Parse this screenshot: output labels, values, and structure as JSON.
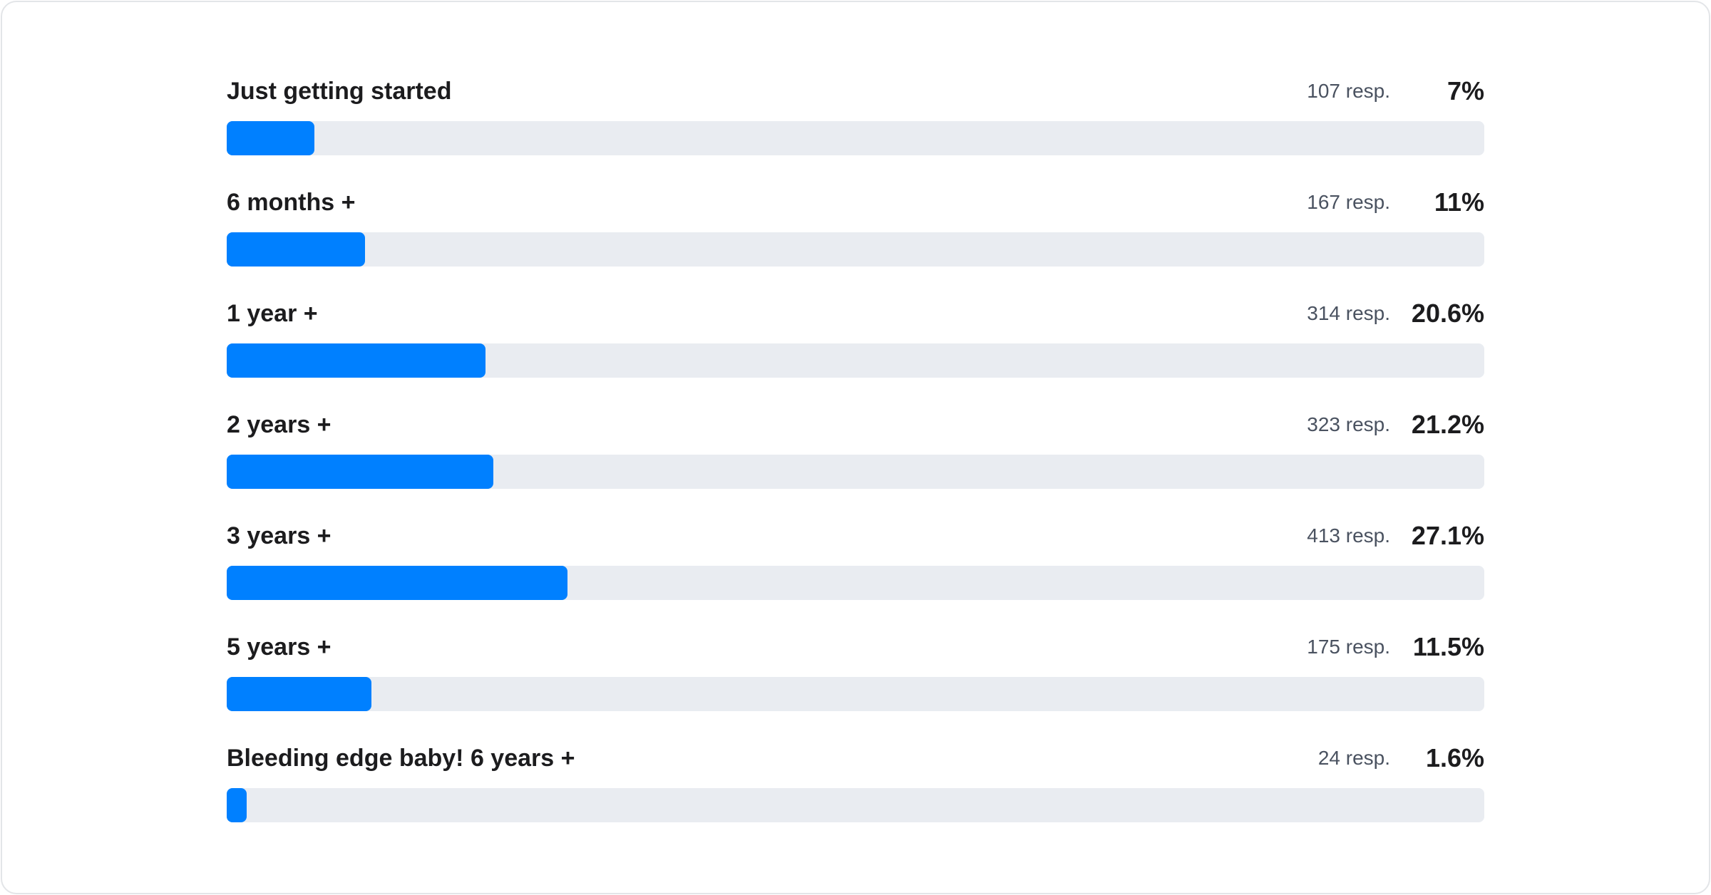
{
  "chart_data": {
    "type": "bar",
    "orientation": "horizontal",
    "categories": [
      "Just getting started",
      "6 months +",
      "1 year +",
      "2 years +",
      "3 years +",
      "5 years +",
      "Bleeding edge baby! 6 years +"
    ],
    "responses": [
      "107 resp.",
      "167 resp.",
      "314 resp.",
      "323 resp.",
      "413 resp.",
      "175 resp.",
      "24 resp."
    ],
    "percent_labels": [
      "7%",
      "11%",
      "20.6%",
      "21.2%",
      "27.1%",
      "11.5%",
      "1.6%"
    ],
    "values": [
      7,
      11,
      20.6,
      21.2,
      27.1,
      11.5,
      1.6
    ],
    "xlim": [
      0,
      100
    ],
    "grid": false,
    "colors": {
      "fill": "#0080ff",
      "track": "#e9ecf1"
    }
  }
}
